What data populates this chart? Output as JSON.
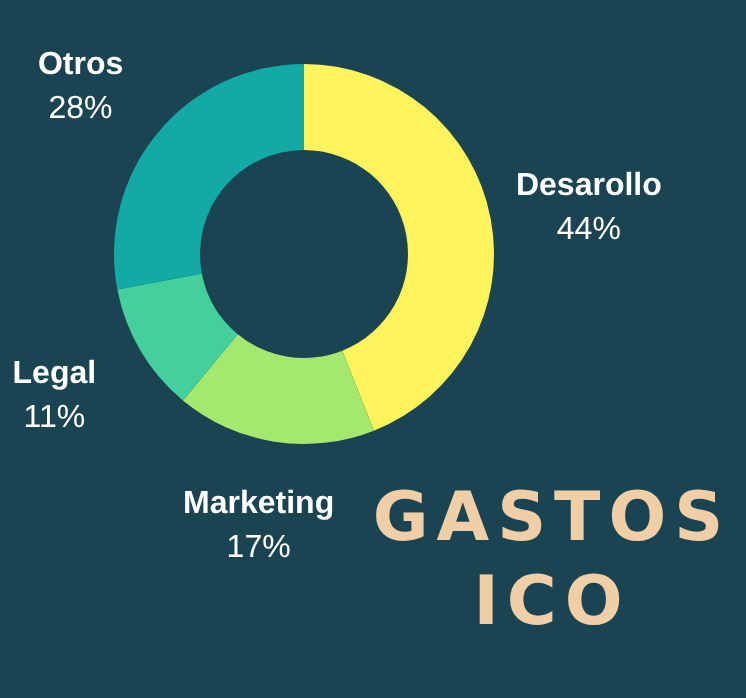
{
  "chart_data": {
    "type": "donut",
    "title": "GASTOS ICO",
    "categories": [
      "Desarollo",
      "Marketing",
      "Legal",
      "Otros"
    ],
    "values": [
      44,
      17,
      11,
      28
    ],
    "value_labels": [
      "44%",
      "17%",
      "11%",
      "28%"
    ],
    "colors": [
      "#fcf45a",
      "#a4e870",
      "#44d09c",
      "#13aaa6"
    ]
  }
}
